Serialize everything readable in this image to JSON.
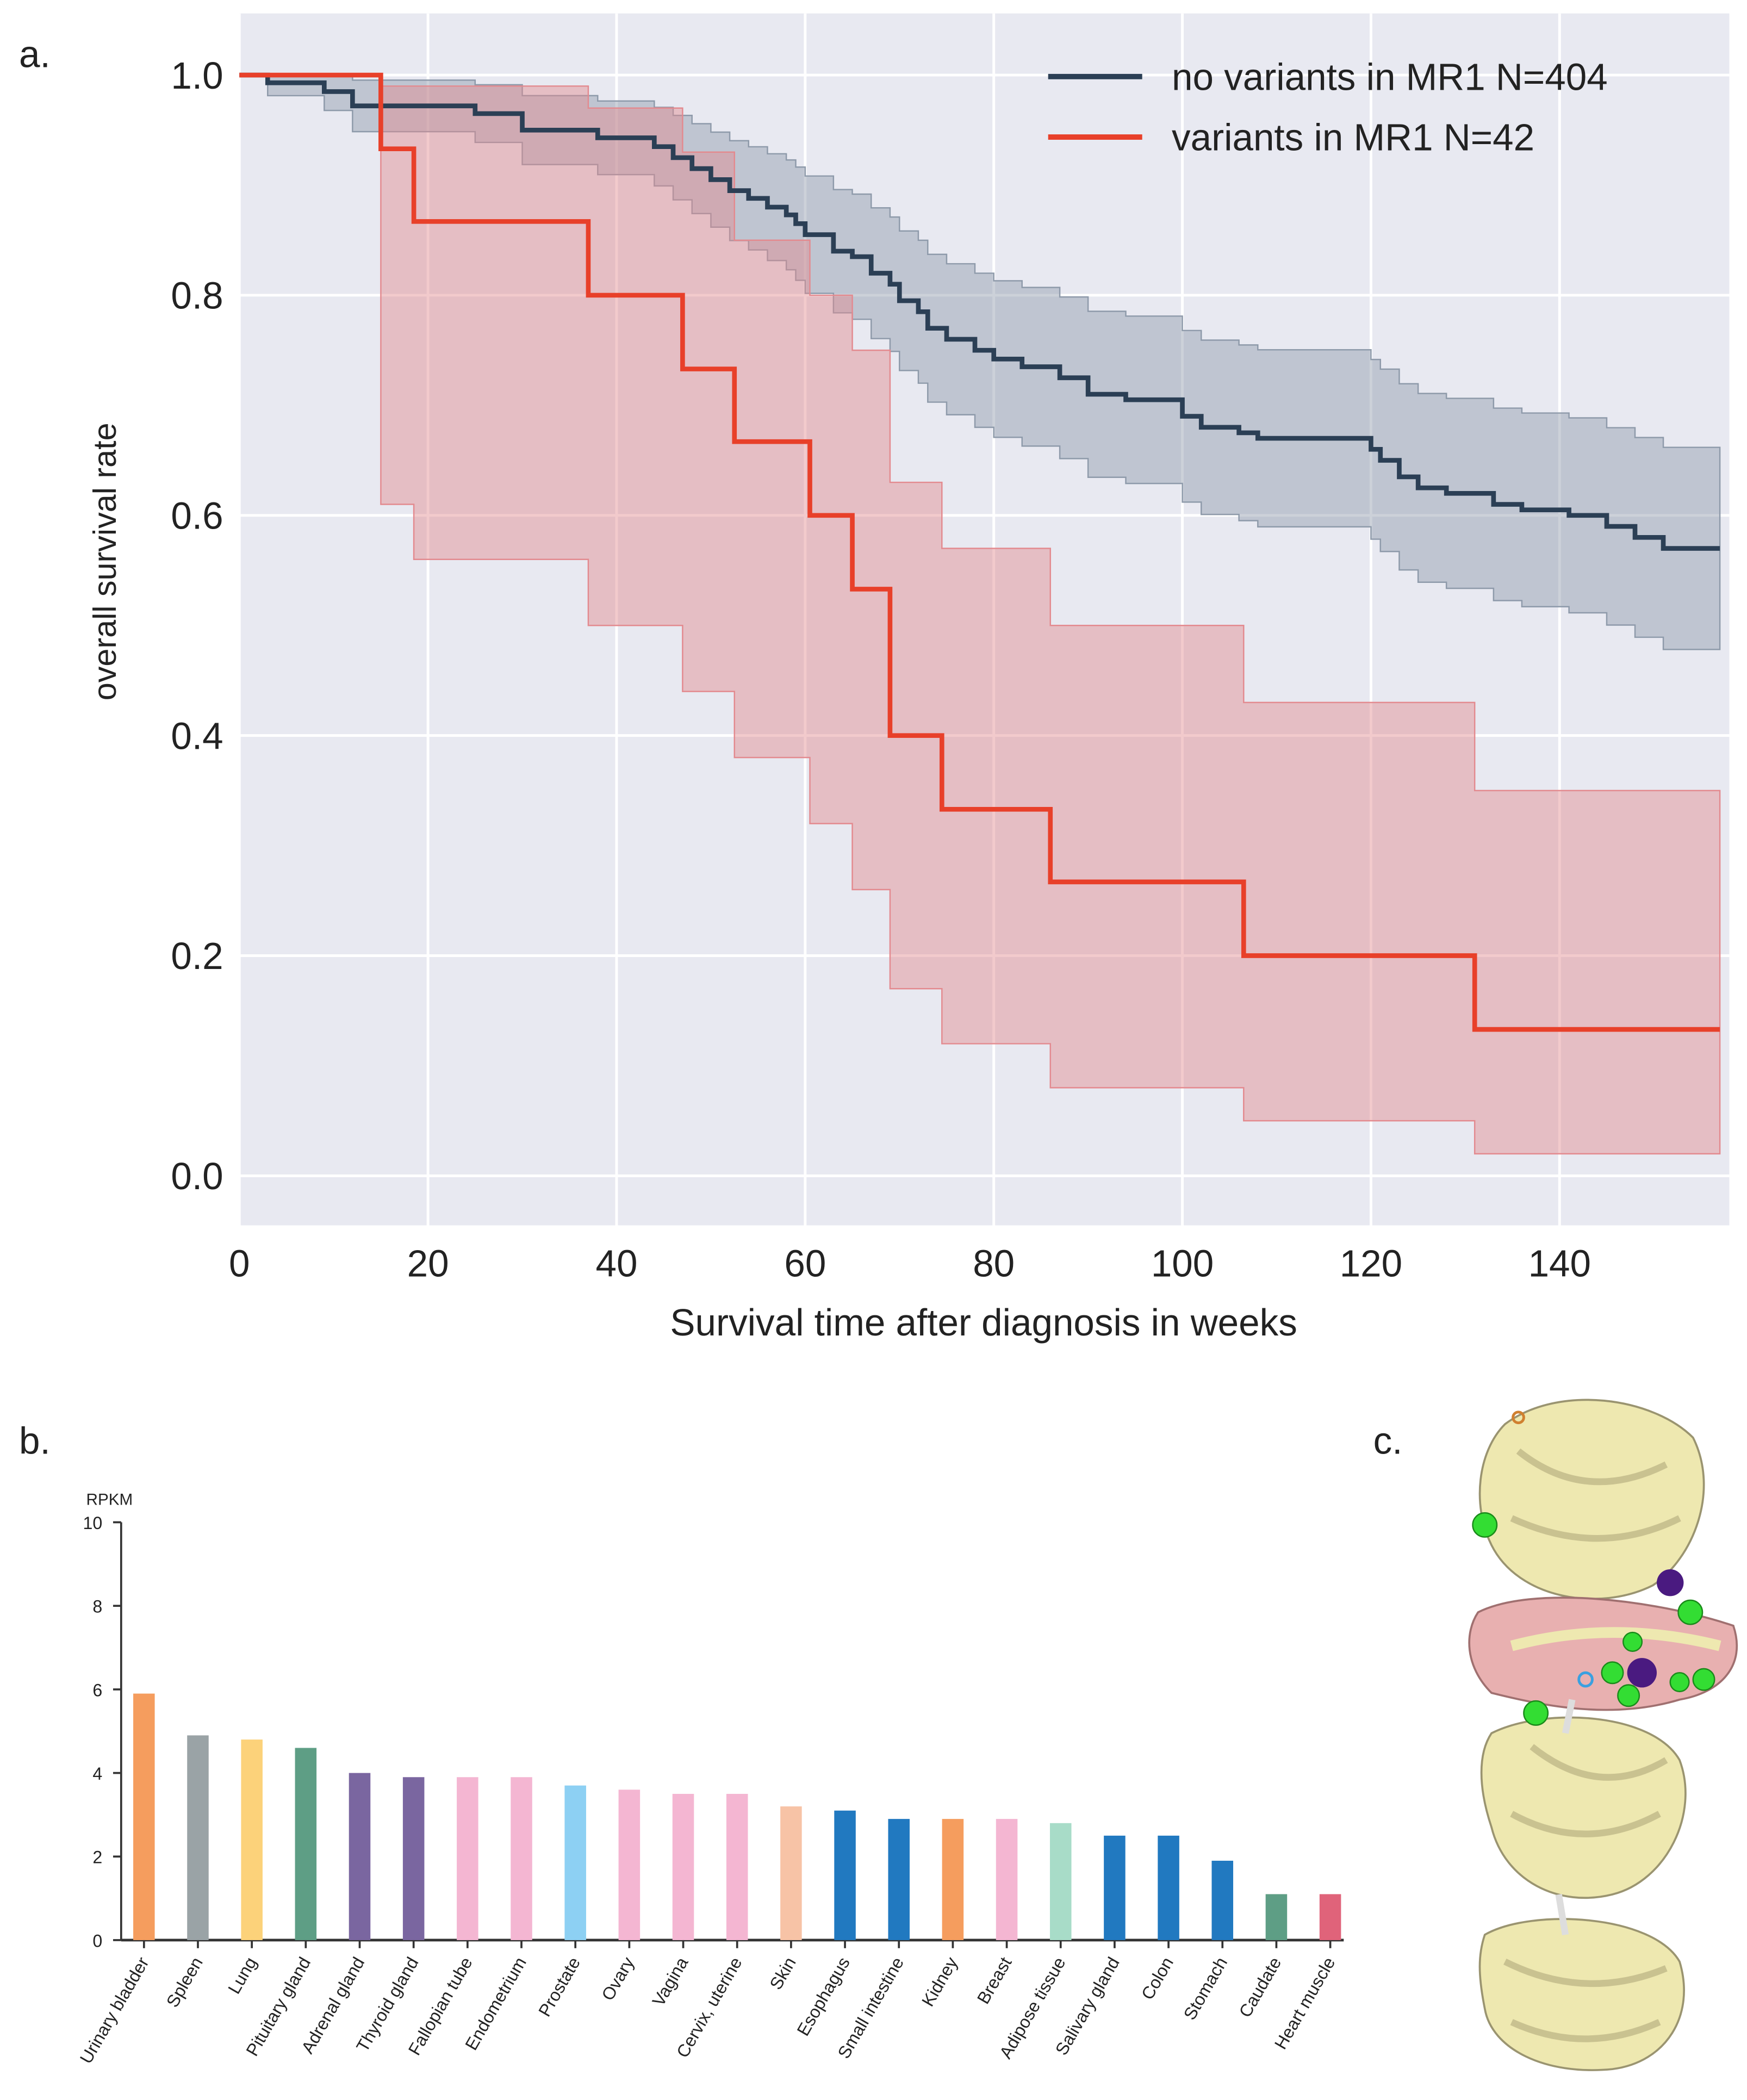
{
  "panel_labels": {
    "a": "a.",
    "b": "b.",
    "c": "c."
  },
  "chart_data": [
    {
      "type": "line",
      "subtype": "kaplan-meier step with confidence bands",
      "xlabel": "Survival time after diagnosis in weeks",
      "ylabel": "overall survival rate",
      "xlim": [
        0,
        158
      ],
      "ylim": [
        -0.045,
        1.056
      ],
      "xticks": [
        0,
        20,
        40,
        60,
        80,
        100,
        120,
        140
      ],
      "yticks": [
        "0.0",
        "0.2",
        "0.4",
        "0.6",
        "0.8",
        "1.0"
      ],
      "grid": true,
      "legend_position": "top-right",
      "series": [
        {
          "name": "no variants in MR1 N=404",
          "color": "#2b3f55",
          "band_color": "#8e9aaa",
          "t": [
            0,
            3,
            9,
            12,
            25,
            30,
            38,
            44,
            46,
            48,
            50,
            52,
            54,
            56,
            58,
            59,
            60,
            63,
            65,
            67,
            69,
            70,
            72,
            73,
            75,
            78,
            80,
            83,
            87,
            90,
            94,
            100,
            102,
            106,
            108,
            113,
            120,
            121,
            123,
            125,
            128,
            133,
            136,
            141,
            145,
            148,
            151
          ],
          "s": [
            1.0,
            0.993,
            0.985,
            0.972,
            0.965,
            0.95,
            0.943,
            0.935,
            0.925,
            0.915,
            0.905,
            0.895,
            0.888,
            0.88,
            0.873,
            0.865,
            0.855,
            0.84,
            0.835,
            0.82,
            0.81,
            0.795,
            0.785,
            0.77,
            0.76,
            0.75,
            0.742,
            0.735,
            0.725,
            0.71,
            0.705,
            0.69,
            0.68,
            0.675,
            0.67,
            0.67,
            0.66,
            0.65,
            0.635,
            0.625,
            0.62,
            0.61,
            0.605,
            0.6,
            0.59,
            0.58,
            0.57
          ]
        },
        {
          "name": "variants in MR1 N=42",
          "color": "#e8402a",
          "band_color": "#e38a8f",
          "t": [
            0,
            15,
            18.5,
            37,
            47,
            52.5,
            60.5,
            65,
            69,
            74.5,
            86,
            106.5,
            131
          ],
          "s": [
            1.0,
            0.933,
            0.867,
            0.8,
            0.733,
            0.667,
            0.6,
            0.533,
            0.4,
            0.333,
            0.267,
            0.2,
            0.133
          ],
          "ci_upper": [
            1.0,
            0.99,
            0.99,
            0.97,
            0.93,
            0.85,
            0.8,
            0.75,
            0.63,
            0.57,
            0.5,
            0.43,
            0.35
          ],
          "ci_lower": [
            1.0,
            0.61,
            0.56,
            0.5,
            0.44,
            0.38,
            0.32,
            0.26,
            0.17,
            0.12,
            0.08,
            0.05,
            0.02
          ]
        }
      ]
    },
    {
      "type": "bar",
      "ylabel": "RPKM",
      "ylim": [
        0,
        10
      ],
      "yticks": [
        "0",
        "2",
        "4",
        "6",
        "8",
        "10"
      ],
      "categories": [
        "Urinary bladder",
        "Spleen",
        "Lung",
        "Pituitary gland",
        "Adrenal gland",
        "Thyroid gland",
        "Fallopian tube",
        "Endometrium",
        "Prostate",
        "Ovary",
        "Vagina",
        "Cervix, uterine",
        "Skin",
        "Esophagus",
        "Small intestine",
        "Kidney",
        "Breast",
        "Adipose tissue",
        "Salivary gland",
        "Colon",
        "Stomach",
        "Caudate",
        "Heart muscle"
      ],
      "values": [
        5.9,
        4.9,
        4.8,
        4.6,
        4.0,
        3.9,
        3.9,
        3.9,
        3.7,
        3.6,
        3.5,
        3.5,
        3.2,
        3.1,
        2.9,
        2.9,
        2.9,
        2.8,
        2.5,
        2.5,
        1.9,
        1.1,
        1.1
      ],
      "colors": [
        "#f59d5e",
        "#9aa3a6",
        "#fcd27a",
        "#5e9e85",
        "#7a66a0",
        "#7a66a0",
        "#f4b6d2",
        "#f4b6d2",
        "#8dd0f3",
        "#f4b6d2",
        "#f4b6d2",
        "#f4b6d2",
        "#f7c3a6",
        "#2179c0",
        "#2179c0",
        "#f59d5e",
        "#f4b6d2",
        "#a8dcc8",
        "#2179c0",
        "#2179c0",
        "#2179c0",
        "#5e9e85",
        "#e0637a"
      ]
    }
  ]
}
